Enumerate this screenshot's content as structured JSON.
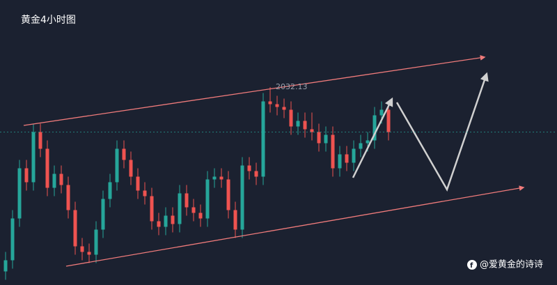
{
  "chart_data": {
    "type": "candlestick",
    "title": "黄金4小时图",
    "watermark": "@爱黄金的诗诗",
    "open": [
      1966,
      1970,
      1985,
      2003,
      1998,
      2016,
      2010,
      1996,
      2001,
      1997,
      1988,
      1975,
      1973,
      1972,
      1981,
      1992,
      1998,
      2010,
      2006,
      2000,
      1995,
      1993,
      1984,
      1982,
      1986,
      1983,
      1994,
      1989,
      1987,
      1985,
      1999,
      2000,
      1999,
      1988,
      1981,
      2004,
      2002,
      2000,
      2027,
      2026,
      2025,
      2024,
      2018,
      2020,
      2017,
      2016,
      2012,
      2015,
      2003,
      2008,
      2005,
      2010,
      2012,
      2013,
      2022,
      2024
    ],
    "high": [
      1973,
      1988,
      2006,
      2006,
      2019,
      2019,
      2013,
      2004,
      2004,
      2000,
      1991,
      1978,
      1976,
      1984,
      1995,
      2001,
      2013,
      2013,
      2009,
      2003,
      1998,
      1996,
      1987,
      1989,
      1989,
      1997,
      1997,
      1992,
      1990,
      2002,
      2003,
      2003,
      2002,
      1991,
      2007,
      2007,
      2005,
      2030,
      2032.13,
      2029,
      2028,
      2027,
      2023,
      2023,
      2023,
      2019,
      2018,
      2018,
      2011,
      2011,
      2013,
      2015,
      2016,
      2025,
      2027,
      2027
    ],
    "low": [
      1963,
      1967,
      1982,
      1995,
      1995,
      2007,
      1993,
      1993,
      1994,
      1985,
      1972,
      1970,
      1969,
      1969,
      1978,
      1989,
      1995,
      2003,
      1997,
      1992,
      1990,
      1981,
      1979,
      1979,
      1980,
      1980,
      1986,
      1984,
      1982,
      1982,
      1996,
      1996,
      1985,
      1978,
      1978,
      1999,
      1997,
      1997,
      2023,
      2022,
      2021,
      2015,
      2015,
      2014,
      2013,
      2009,
      2009,
      2000,
      2000,
      2002,
      2002,
      2007,
      2009,
      2010,
      2019,
      2013
    ],
    "close": [
      1970,
      1985,
      2003,
      1998,
      2016,
      2010,
      1996,
      2001,
      1997,
      1988,
      1975,
      1973,
      1972,
      1981,
      1992,
      1998,
      2010,
      2006,
      2000,
      1995,
      1993,
      1984,
      1982,
      1986,
      1983,
      1994,
      1989,
      1987,
      1985,
      1999,
      2000,
      1999,
      1988,
      1981,
      2004,
      2002,
      2000,
      2027,
      2026,
      2025,
      2024,
      2018,
      2020,
      2017,
      2016,
      2012,
      2015,
      2003,
      2008,
      2005,
      2010,
      2012,
      2013,
      2022,
      2024,
      2016
    ],
    "up_color": "#26a69a",
    "down_color": "#ef5350",
    "ylim": [
      1960,
      2040
    ]
  }
}
